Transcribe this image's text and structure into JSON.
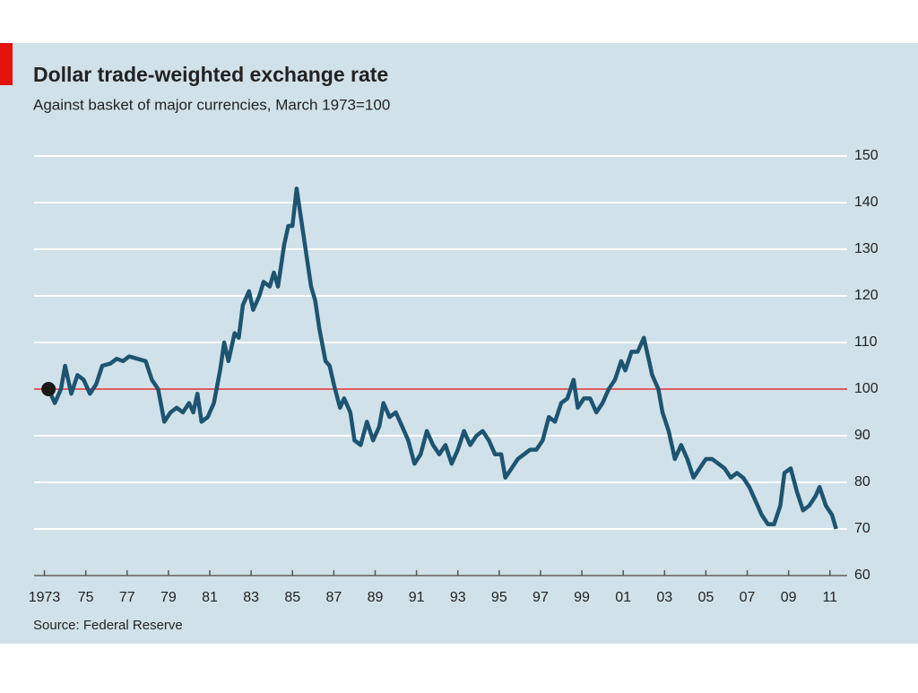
{
  "chart_data": {
    "type": "line",
    "title": "Dollar trade-weighted exchange rate",
    "subtitle": "Against basket of major currencies, March 1973=100",
    "source": "Source: Federal Reserve",
    "reference_line": 100,
    "xlim": [
      1972.5,
      2011.4
    ],
    "xticks": [
      {
        "value": 1973,
        "label": "1973"
      },
      {
        "value": 1975,
        "label": "75"
      },
      {
        "value": 1977,
        "label": "77"
      },
      {
        "value": 1979,
        "label": "79"
      },
      {
        "value": 1981,
        "label": "81"
      },
      {
        "value": 1983,
        "label": "83"
      },
      {
        "value": 1985,
        "label": "85"
      },
      {
        "value": 1987,
        "label": "87"
      },
      {
        "value": 1989,
        "label": "89"
      },
      {
        "value": 1991,
        "label": "91"
      },
      {
        "value": 1993,
        "label": "93"
      },
      {
        "value": 1995,
        "label": "95"
      },
      {
        "value": 1997,
        "label": "97"
      },
      {
        "value": 1999,
        "label": "99"
      },
      {
        "value": 2001,
        "label": "01"
      },
      {
        "value": 2003,
        "label": "03"
      },
      {
        "value": 2005,
        "label": "05"
      },
      {
        "value": 2007,
        "label": "07"
      },
      {
        "value": 2009,
        "label": "09"
      },
      {
        "value": 2011,
        "label": "11"
      }
    ],
    "ylim": [
      60,
      150
    ],
    "yticks": [
      60,
      70,
      80,
      90,
      100,
      110,
      120,
      130,
      140,
      150
    ],
    "grid": true,
    "x": [
      1973.2,
      1973.5,
      1973.8,
      1974.0,
      1974.3,
      1974.6,
      1974.9,
      1975.2,
      1975.5,
      1975.8,
      1976.2,
      1976.5,
      1976.8,
      1977.1,
      1977.5,
      1977.9,
      1978.2,
      1978.5,
      1978.8,
      1979.1,
      1979.4,
      1979.7,
      1980.0,
      1980.2,
      1980.4,
      1980.6,
      1980.9,
      1981.2,
      1981.5,
      1981.7,
      1981.9,
      1982.2,
      1982.4,
      1982.6,
      1982.9,
      1983.1,
      1983.4,
      1983.6,
      1983.9,
      1984.1,
      1984.3,
      1984.6,
      1984.8,
      1985.0,
      1985.2,
      1985.4,
      1985.6,
      1985.9,
      1986.1,
      1986.3,
      1986.6,
      1986.8,
      1987.0,
      1987.3,
      1987.5,
      1987.8,
      1988.0,
      1988.3,
      1988.6,
      1988.9,
      1989.2,
      1989.4,
      1989.7,
      1990.0,
      1990.3,
      1990.6,
      1990.9,
      1991.2,
      1991.5,
      1991.8,
      1992.1,
      1992.4,
      1992.7,
      1993.0,
      1993.3,
      1993.6,
      1993.9,
      1994.2,
      1994.5,
      1994.8,
      1995.1,
      1995.3,
      1995.6,
      1995.9,
      1996.2,
      1996.5,
      1996.8,
      1997.1,
      1997.4,
      1997.7,
      1998.0,
      1998.3,
      1998.6,
      1998.8,
      1999.1,
      1999.4,
      1999.7,
      2000.0,
      2000.3,
      2000.6,
      2000.9,
      2001.1,
      2001.4,
      2001.7,
      2002.0,
      2002.2,
      2002.4,
      2002.7,
      2002.9,
      2003.2,
      2003.5,
      2003.8,
      2004.1,
      2004.4,
      2004.7,
      2005.0,
      2005.3,
      2005.6,
      2005.9,
      2006.2,
      2006.5,
      2006.8,
      2007.1,
      2007.4,
      2007.7,
      2008.0,
      2008.3,
      2008.6,
      2008.8,
      2009.1,
      2009.4,
      2009.7,
      2010.0,
      2010.3,
      2010.5,
      2010.8,
      2011.1,
      2011.3
    ],
    "series": [
      {
        "color": "#1d5471",
        "values": [
          100,
          97,
          100,
          105,
          99,
          103,
          102,
          99,
          101,
          105,
          105.5,
          106.5,
          106,
          107,
          106.5,
          106,
          102,
          100,
          93,
          95,
          96,
          95,
          97,
          95,
          99,
          93,
          94,
          97,
          104,
          110,
          106,
          112,
          111,
          118,
          121,
          117,
          120,
          123,
          122,
          125,
          122,
          131,
          135,
          135,
          143,
          137,
          131,
          122,
          119,
          113,
          106,
          105,
          101,
          96,
          98,
          95,
          89,
          88,
          93,
          89,
          92,
          97,
          94,
          95,
          92,
          89,
          84,
          86,
          91,
          88,
          86,
          88,
          84,
          87,
          91,
          88,
          90,
          91,
          89,
          86,
          86,
          81,
          83,
          85,
          86,
          87,
          87,
          89,
          94,
          93,
          97,
          98,
          102,
          96,
          98,
          98,
          95,
          97,
          100,
          102,
          106,
          104,
          108,
          108,
          111,
          107,
          103,
          100,
          95,
          91,
          85,
          88,
          85,
          81,
          83,
          85,
          85,
          84,
          83,
          81,
          82,
          81,
          79,
          76,
          73,
          71,
          71,
          75,
          82,
          83,
          78,
          74,
          75,
          77,
          79,
          75,
          73,
          70
        ]
      }
    ]
  }
}
